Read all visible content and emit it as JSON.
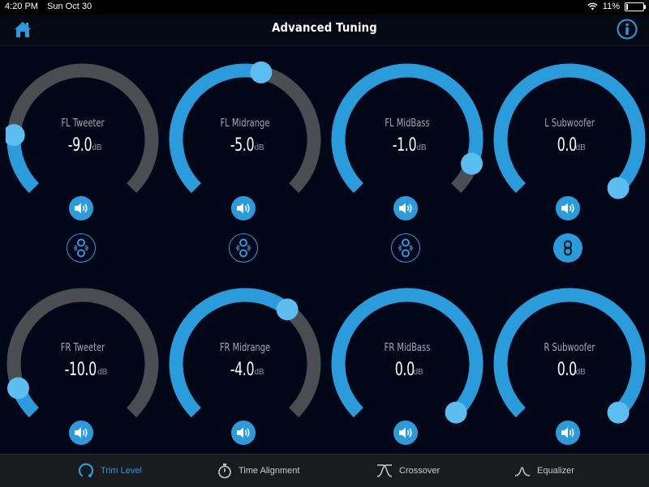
{
  "status_bar": {
    "time": "4:20 PM",
    "date": "Sun Oct 30",
    "battery": "11%",
    "battery_level": 0.11,
    "wifi_icon": "wifi-icon"
  },
  "header": {
    "title": "Advanced Tuning",
    "left_icon": "home-icon",
    "right_icon": "info-icon"
  },
  "colors": {
    "accent": "#2a9bdb",
    "knob": "#5bbdf0",
    "track_off": "#4a4d52",
    "background": "#020717"
  },
  "channels": [
    {
      "name": "FL Tweeter",
      "value": "-9.0",
      "unit": "dB",
      "level": 0.18,
      "linked": false
    },
    {
      "name": "FL Midrange",
      "value": "-5.0",
      "unit": "dB",
      "level": 0.55,
      "linked": false
    },
    {
      "name": "FL MidBass",
      "value": "-1.0",
      "unit": "dB",
      "level": 0.91,
      "linked": false
    },
    {
      "name": "L Subwoofer",
      "value": "0.0",
      "unit": "dB",
      "level": 1.0,
      "linked": true
    },
    {
      "name": "FR Tweeter",
      "value": "-10.0",
      "unit": "dB",
      "level": 0.09,
      "linked": null
    },
    {
      "name": "FR Midrange",
      "value": "-4.0",
      "unit": "dB",
      "level": 0.64,
      "linked": null
    },
    {
      "name": "FR MidBass",
      "value": "0.0",
      "unit": "dB",
      "level": 1.0,
      "linked": null
    },
    {
      "name": "R Subwoofer",
      "value": "0.0",
      "unit": "dB",
      "level": 1.0,
      "linked": null
    }
  ],
  "tabs": [
    {
      "label": "Trim Level",
      "icon": "trim-level-icon",
      "active": true
    },
    {
      "label": "Time Alignment",
      "icon": "stopwatch-icon",
      "active": false
    },
    {
      "label": "Crossover",
      "icon": "crossover-icon",
      "active": false
    },
    {
      "label": "Equalizer",
      "icon": "equalizer-icon",
      "active": false
    }
  ]
}
